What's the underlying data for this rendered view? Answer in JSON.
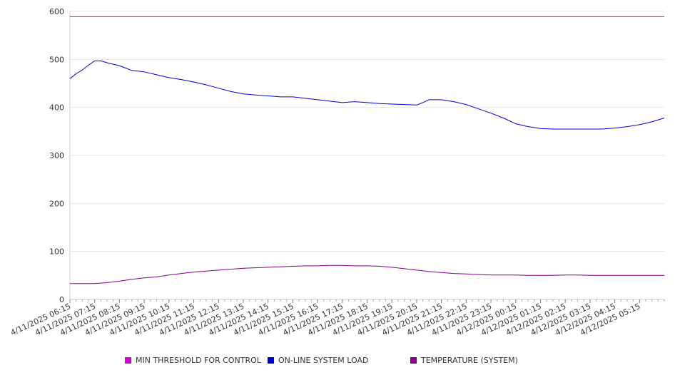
{
  "chart_data": {
    "type": "line",
    "title": "",
    "xlabel": "",
    "ylabel": "",
    "ylim": [
      0,
      600
    ],
    "yticks": [
      "0",
      "100",
      "200",
      "300",
      "400",
      "500",
      "600"
    ],
    "grid": true,
    "legend_position": "bottom",
    "x_start": "4/11/2025 06:15",
    "x_end": "4/12/2025 06:15",
    "x_tick_labels": [
      "4/11/2025 06:15",
      "4/11/2025 07:15",
      "4/11/2025 08:15",
      "4/11/2025 09:15",
      "4/11/2025 10:15",
      "4/11/2025 11:15",
      "4/11/2025 12:15",
      "4/11/2025 13:15",
      "4/11/2025 14:15",
      "4/11/2025 15:15",
      "4/11/2025 16:15",
      "4/11/2025 17:15",
      "4/11/2025 18:15",
      "4/11/2025 19:15",
      "4/11/2025 20:15",
      "4/11/2025 21:15",
      "4/11/2025 22:15",
      "4/11/2025 23:15",
      "4/12/2025 00:15",
      "4/12/2025 01:15",
      "4/12/2025 02:15",
      "4/12/2025 03:15",
      "4/12/2025 04:15",
      "4/12/2025 05:15"
    ],
    "series": [
      {
        "name": "MIN THRESHOLD FOR CONTROL",
        "color": "#d600d6",
        "points": [
          [
            "4/11/2025 06:15",
            589
          ],
          [
            "4/12/2025 06:15",
            589
          ]
        ]
      },
      {
        "name": "ON-LINE SYSTEM LOAD",
        "color": "#0000d0",
        "points": [
          [
            "4/11/2025 06:15",
            460
          ],
          [
            "4/11/2025 06:30",
            470
          ],
          [
            "4/11/2025 06:45",
            478
          ],
          [
            "4/11/2025 07:00",
            488
          ],
          [
            "4/11/2025 07:15",
            497
          ],
          [
            "4/11/2025 07:30",
            497
          ],
          [
            "4/11/2025 07:45",
            493
          ],
          [
            "4/11/2025 08:00",
            490
          ],
          [
            "4/11/2025 08:15",
            487
          ],
          [
            "4/11/2025 08:30",
            482
          ],
          [
            "4/11/2025 08:45",
            477
          ],
          [
            "4/11/2025 09:15",
            474
          ],
          [
            "4/11/2025 09:45",
            468
          ],
          [
            "4/11/2025 10:15",
            462
          ],
          [
            "4/11/2025 10:45",
            458
          ],
          [
            "4/11/2025 11:15",
            453
          ],
          [
            "4/11/2025 11:45",
            447
          ],
          [
            "4/11/2025 12:15",
            440
          ],
          [
            "4/11/2025 12:45",
            433
          ],
          [
            "4/11/2025 13:15",
            428
          ],
          [
            "4/11/2025 13:45",
            426
          ],
          [
            "4/11/2025 14:15",
            424
          ],
          [
            "4/11/2025 14:45",
            422
          ],
          [
            "4/11/2025 15:15",
            422
          ],
          [
            "4/11/2025 15:45",
            419
          ],
          [
            "4/11/2025 16:15",
            416
          ],
          [
            "4/11/2025 16:45",
            413
          ],
          [
            "4/11/2025 17:15",
            410
          ],
          [
            "4/11/2025 17:45",
            412
          ],
          [
            "4/11/2025 18:15",
            410
          ],
          [
            "4/11/2025 18:45",
            408
          ],
          [
            "4/11/2025 19:15",
            407
          ],
          [
            "4/11/2025 19:45",
            406
          ],
          [
            "4/11/2025 20:15",
            405
          ],
          [
            "4/11/2025 20:30",
            410
          ],
          [
            "4/11/2025 20:45",
            416
          ],
          [
            "4/11/2025 21:15",
            416
          ],
          [
            "4/11/2025 21:45",
            412
          ],
          [
            "4/11/2025 22:15",
            406
          ],
          [
            "4/11/2025 22:45",
            397
          ],
          [
            "4/11/2025 23:15",
            388
          ],
          [
            "4/11/2025 23:45",
            378
          ],
          [
            "4/12/2025 00:15",
            366
          ],
          [
            "4/12/2025 00:45",
            360
          ],
          [
            "4/12/2025 01:15",
            356
          ],
          [
            "4/12/2025 01:45",
            355
          ],
          [
            "4/12/2025 02:15",
            355
          ],
          [
            "4/12/2025 02:45",
            355
          ],
          [
            "4/12/2025 03:15",
            355
          ],
          [
            "4/12/2025 03:45",
            355
          ],
          [
            "4/12/2025 04:15",
            357
          ],
          [
            "4/12/2025 04:45",
            360
          ],
          [
            "4/12/2025 05:15",
            364
          ],
          [
            "4/12/2025 05:45",
            370
          ],
          [
            "4/12/2025 06:15",
            378
          ]
        ]
      },
      {
        "name": "TEMPERATURE (SYSTEM)",
        "color": "#880088",
        "points": [
          [
            "4/11/2025 06:15",
            33
          ],
          [
            "4/11/2025 07:15",
            33
          ],
          [
            "4/11/2025 07:45",
            35
          ],
          [
            "4/11/2025 08:15",
            38
          ],
          [
            "4/11/2025 08:45",
            42
          ],
          [
            "4/11/2025 09:15",
            45
          ],
          [
            "4/11/2025 09:45",
            47
          ],
          [
            "4/11/2025 10:15",
            51
          ],
          [
            "4/11/2025 10:45",
            54
          ],
          [
            "4/11/2025 11:15",
            57
          ],
          [
            "4/11/2025 11:45",
            59
          ],
          [
            "4/11/2025 12:15",
            61
          ],
          [
            "4/11/2025 12:45",
            63
          ],
          [
            "4/11/2025 13:15",
            65
          ],
          [
            "4/11/2025 13:45",
            66
          ],
          [
            "4/11/2025 14:15",
            67
          ],
          [
            "4/11/2025 14:45",
            68
          ],
          [
            "4/11/2025 15:15",
            69
          ],
          [
            "4/11/2025 15:45",
            70
          ],
          [
            "4/11/2025 16:15",
            70
          ],
          [
            "4/11/2025 16:45",
            71
          ],
          [
            "4/11/2025 17:15",
            71
          ],
          [
            "4/11/2025 17:45",
            70
          ],
          [
            "4/11/2025 18:15",
            70
          ],
          [
            "4/11/2025 18:45",
            69
          ],
          [
            "4/11/2025 19:15",
            67
          ],
          [
            "4/11/2025 19:45",
            64
          ],
          [
            "4/11/2025 20:15",
            61
          ],
          [
            "4/11/2025 20:45",
            58
          ],
          [
            "4/11/2025 21:15",
            56
          ],
          [
            "4/11/2025 21:45",
            54
          ],
          [
            "4/11/2025 22:15",
            53
          ],
          [
            "4/11/2025 22:45",
            52
          ],
          [
            "4/11/2025 23:15",
            51
          ],
          [
            "4/12/2025 00:15",
            51
          ],
          [
            "4/12/2025 00:45",
            50
          ],
          [
            "4/12/2025 01:15",
            50
          ],
          [
            "4/12/2025 01:45",
            50
          ],
          [
            "4/12/2025 02:15",
            51
          ],
          [
            "4/12/2025 02:45",
            51
          ],
          [
            "4/12/2025 03:15",
            50
          ],
          [
            "4/12/2025 04:15",
            50
          ],
          [
            "4/12/2025 05:15",
            50
          ],
          [
            "4/12/2025 06:15",
            50
          ]
        ]
      }
    ]
  }
}
